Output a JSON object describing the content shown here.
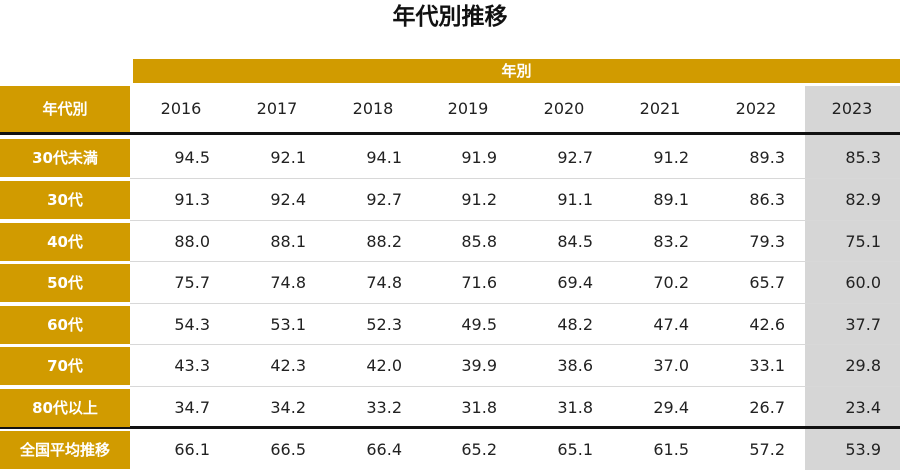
{
  "colors": {
    "gold": "#d19b00",
    "highlight": "#d6d6d6"
  },
  "chart_data": {
    "type": "table",
    "title": "年代別推移",
    "column_group_label": "年別",
    "row_header_label": "年代別",
    "columns": [
      "2016",
      "2017",
      "2018",
      "2019",
      "2020",
      "2021",
      "2022",
      "2023"
    ],
    "highlight_column": "2023",
    "rows": [
      {
        "label": "30代未満",
        "values": [
          "94.5",
          "92.1",
          "94.1",
          "91.9",
          "92.7",
          "91.2",
          "89.3",
          "85.3"
        ]
      },
      {
        "label": "30代",
        "values": [
          "91.3",
          "92.4",
          "92.7",
          "91.2",
          "91.1",
          "89.1",
          "86.3",
          "82.9"
        ]
      },
      {
        "label": "40代",
        "values": [
          "88.0",
          "88.1",
          "88.2",
          "85.8",
          "84.5",
          "83.2",
          "79.3",
          "75.1"
        ]
      },
      {
        "label": "50代",
        "values": [
          "75.7",
          "74.8",
          "74.8",
          "71.6",
          "69.4",
          "70.2",
          "65.7",
          "60.0"
        ]
      },
      {
        "label": "60代",
        "values": [
          "54.3",
          "53.1",
          "52.3",
          "49.5",
          "48.2",
          "47.4",
          "42.6",
          "37.7"
        ]
      },
      {
        "label": "70代",
        "values": [
          "43.3",
          "42.3",
          "42.0",
          "39.9",
          "38.6",
          "37.0",
          "33.1",
          "29.8"
        ]
      },
      {
        "label": "80代以上",
        "values": [
          "34.7",
          "34.2",
          "33.2",
          "31.8",
          "31.8",
          "29.4",
          "26.7",
          "23.4"
        ]
      }
    ],
    "total_row": {
      "label": "全国平均推移",
      "values": [
        "66.1",
        "66.5",
        "66.4",
        "65.2",
        "65.1",
        "61.5",
        "57.2",
        "53.9"
      ]
    }
  }
}
